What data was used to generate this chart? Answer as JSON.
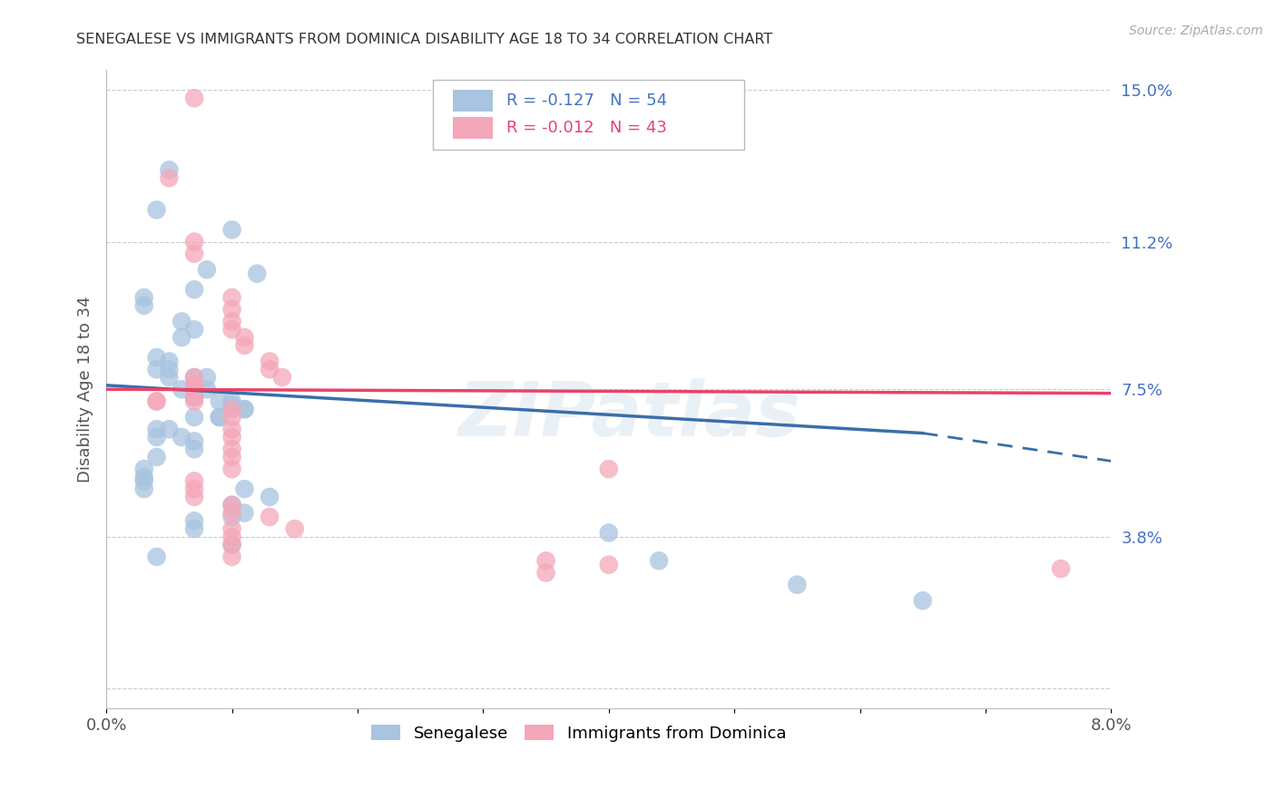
{
  "title": "SENEGALESE VS IMMIGRANTS FROM DOMINICA DISABILITY AGE 18 TO 34 CORRELATION CHART",
  "source": "Source: ZipAtlas.com",
  "ylabel": "Disability Age 18 to 34",
  "legend_label1": "Senegalese",
  "legend_label2": "Immigrants from Dominica",
  "r1": -0.127,
  "n1": 54,
  "r2": -0.012,
  "n2": 43,
  "color1": "#a8c4e0",
  "color2": "#f4a7b9",
  "trendline1_color": "#3a6ea8",
  "trendline2_color": "#e8436a",
  "xlim": [
    0.0,
    0.08
  ],
  "ylim": [
    -0.005,
    0.155
  ],
  "xticks": [
    0.0,
    0.01,
    0.02,
    0.03,
    0.04,
    0.05,
    0.06,
    0.07,
    0.08
  ],
  "xticklabels": [
    "0.0%",
    "",
    "",
    "",
    "",
    "",
    "",
    "",
    "8.0%"
  ],
  "yticks_right": [
    0.15,
    0.112,
    0.075,
    0.038,
    0.0
  ],
  "ytick_right_labels": [
    "15.0%",
    "11.2%",
    "7.5%",
    "3.8%",
    ""
  ],
  "grid_color": "#cccccc",
  "background_color": "#ffffff",
  "watermark": "ZIPatlas",
  "blue_scatter_x": [
    0.005,
    0.004,
    0.01,
    0.008,
    0.012,
    0.007,
    0.003,
    0.003,
    0.006,
    0.007,
    0.006,
    0.004,
    0.005,
    0.004,
    0.005,
    0.005,
    0.008,
    0.007,
    0.006,
    0.008,
    0.007,
    0.007,
    0.009,
    0.01,
    0.01,
    0.011,
    0.011,
    0.007,
    0.009,
    0.009,
    0.005,
    0.004,
    0.006,
    0.004,
    0.007,
    0.007,
    0.004,
    0.003,
    0.003,
    0.003,
    0.003,
    0.011,
    0.013,
    0.01,
    0.011,
    0.01,
    0.007,
    0.007,
    0.01,
    0.004,
    0.04,
    0.044,
    0.055,
    0.065
  ],
  "blue_scatter_y": [
    0.13,
    0.12,
    0.115,
    0.105,
    0.104,
    0.1,
    0.098,
    0.096,
    0.092,
    0.09,
    0.088,
    0.083,
    0.082,
    0.08,
    0.08,
    0.078,
    0.078,
    0.078,
    0.075,
    0.075,
    0.073,
    0.073,
    0.072,
    0.072,
    0.071,
    0.07,
    0.07,
    0.068,
    0.068,
    0.068,
    0.065,
    0.065,
    0.063,
    0.063,
    0.062,
    0.06,
    0.058,
    0.055,
    0.053,
    0.052,
    0.05,
    0.05,
    0.048,
    0.046,
    0.044,
    0.043,
    0.042,
    0.04,
    0.036,
    0.033,
    0.039,
    0.032,
    0.026,
    0.022
  ],
  "pink_scatter_x": [
    0.007,
    0.005,
    0.007,
    0.007,
    0.01,
    0.01,
    0.01,
    0.01,
    0.011,
    0.011,
    0.013,
    0.013,
    0.014,
    0.007,
    0.007,
    0.007,
    0.007,
    0.004,
    0.004,
    0.007,
    0.01,
    0.01,
    0.01,
    0.01,
    0.01,
    0.01,
    0.01,
    0.007,
    0.007,
    0.007,
    0.01,
    0.01,
    0.013,
    0.015,
    0.01,
    0.01,
    0.01,
    0.01,
    0.04,
    0.035,
    0.035,
    0.04,
    0.076
  ],
  "pink_scatter_y": [
    0.148,
    0.128,
    0.112,
    0.109,
    0.098,
    0.095,
    0.092,
    0.09,
    0.088,
    0.086,
    0.082,
    0.08,
    0.078,
    0.078,
    0.076,
    0.075,
    0.073,
    0.072,
    0.072,
    0.072,
    0.07,
    0.068,
    0.065,
    0.063,
    0.06,
    0.058,
    0.055,
    0.052,
    0.05,
    0.048,
    0.046,
    0.044,
    0.043,
    0.04,
    0.04,
    0.038,
    0.036,
    0.033,
    0.055,
    0.032,
    0.029,
    0.031,
    0.03
  ],
  "trend1_x0": 0.0,
  "trend1_x_solid_end": 0.065,
  "trend1_x_dashed_end": 0.08,
  "trend1_y0": 0.076,
  "trend1_y_solid_end": 0.064,
  "trend1_y_dashed_end": 0.057,
  "trend2_x0": 0.0,
  "trend2_x_end": 0.08,
  "trend2_y0": 0.075,
  "trend2_y_end": 0.074
}
